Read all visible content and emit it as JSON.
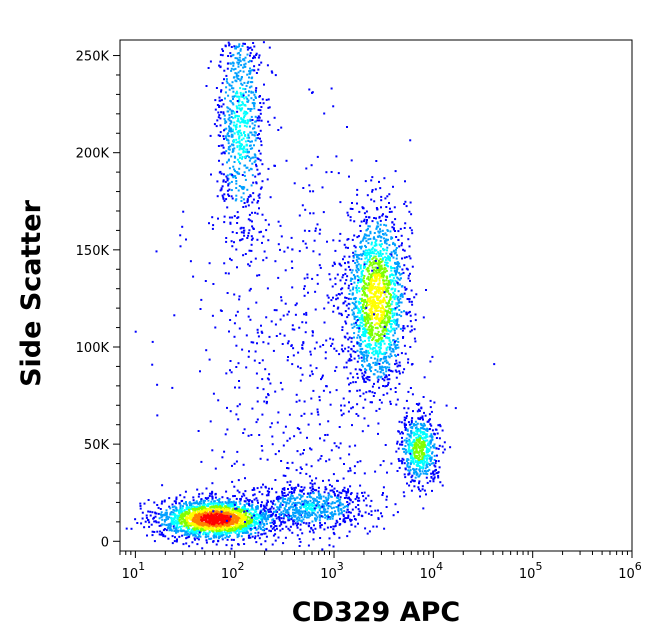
{
  "chart_data": {
    "type": "scatter",
    "subtype": "flow-cytometry-density-plot",
    "title": "",
    "xlabel": "CD329 APC",
    "ylabel": "Side Scatter",
    "x_scale": "log",
    "xlim": [
      7,
      1000000
    ],
    "ylim": [
      -5000,
      258000
    ],
    "x_ticks": [
      {
        "value": 10,
        "base": "10",
        "exp": "1"
      },
      {
        "value": 100,
        "base": "10",
        "exp": "2"
      },
      {
        "value": 1000,
        "base": "10",
        "exp": "3"
      },
      {
        "value": 10000,
        "base": "10",
        "exp": "4"
      },
      {
        "value": 100000,
        "base": "10",
        "exp": "5"
      },
      {
        "value": 1000000,
        "base": "10",
        "exp": "6"
      }
    ],
    "y_ticks": [
      {
        "value": 0,
        "label": "0"
      },
      {
        "value": 50000,
        "label": "50K"
      },
      {
        "value": 100000,
        "label": "100K"
      },
      {
        "value": 150000,
        "label": "150K"
      },
      {
        "value": 200000,
        "label": "200K"
      },
      {
        "value": 250000,
        "label": "250K"
      }
    ],
    "grid": false,
    "legend": "none",
    "color_scale": [
      "#0000ff",
      "#00a0ff",
      "#00ffff",
      "#80ff00",
      "#ffff00",
      "#ff8000",
      "#ff0000"
    ],
    "populations": [
      {
        "log10_x_center": 1.8,
        "y_center": 12000,
        "log10_x_sd": 0.28,
        "y_sd": 5000,
        "weight": 0.33,
        "peak_density": 1.0
      },
      {
        "log10_x_center": 3.42,
        "y_center": 125000,
        "log10_x_sd": 0.15,
        "y_sd": 22000,
        "weight": 0.26,
        "peak_density": 0.68
      },
      {
        "log10_x_center": 3.85,
        "y_center": 48000,
        "log10_x_sd": 0.1,
        "y_sd": 9000,
        "weight": 0.09,
        "peak_density": 0.52
      },
      {
        "log10_x_center": 2.05,
        "y_center": 215000,
        "log10_x_sd": 0.12,
        "y_sd": 30000,
        "weight": 0.12,
        "peak_density": 0.35
      },
      {
        "log10_x_center": 2.75,
        "y_center": 18000,
        "log10_x_sd": 0.3,
        "y_sd": 6000,
        "weight": 0.1,
        "peak_density": 0.3
      },
      {
        "log10_x_center": 2.6,
        "y_center": 90000,
        "log10_x_sd": 0.55,
        "y_sd": 60000,
        "weight": 0.1,
        "peak_density": 0.08
      }
    ]
  }
}
